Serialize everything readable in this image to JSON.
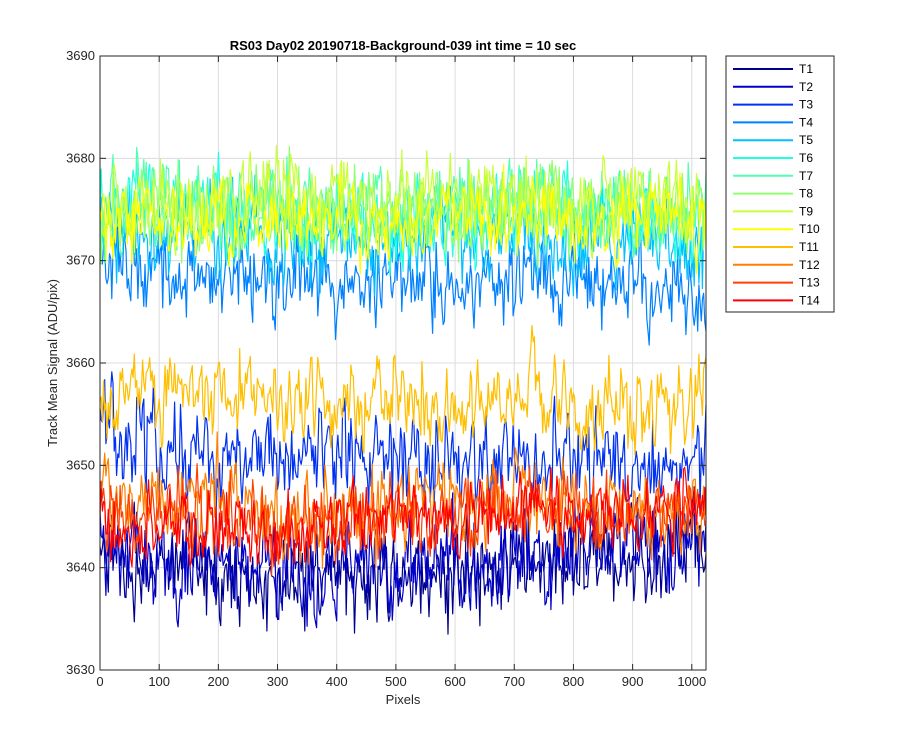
{
  "chart_data": {
    "type": "line",
    "title": "RS03 Day02 20190718-Background-039 int time = 10 sec",
    "xlabel": "Pixels",
    "ylabel": "Track Mean Signal (ADU/pix)",
    "xlim": [
      0,
      1024
    ],
    "ylim": [
      3630,
      3690
    ],
    "xticks": [
      0,
      100,
      200,
      300,
      400,
      500,
      600,
      700,
      800,
      900,
      1000
    ],
    "yticks": [
      3630,
      3640,
      3650,
      3660,
      3670,
      3680,
      3690
    ],
    "grid": true,
    "legend_position": "outside-right",
    "series": [
      {
        "name": "T1",
        "color": "#00008f",
        "x": [
          0,
          100,
          200,
          300,
          400,
          500,
          600,
          700,
          800,
          900,
          1024
        ],
        "values": [
          3641,
          3640,
          3640,
          3638,
          3639,
          3640,
          3639,
          3640,
          3641,
          3641,
          3642
        ],
        "noise": 2.2
      },
      {
        "name": "T2",
        "color": "#0000c8",
        "x": [
          0,
          100,
          200,
          300,
          400,
          500,
          600,
          700,
          800,
          900,
          1024
        ],
        "values": [
          3642,
          3641,
          3640,
          3639,
          3639,
          3640,
          3640,
          3641,
          3641,
          3642,
          3643
        ],
        "noise": 2.2
      },
      {
        "name": "T3",
        "color": "#0030f0",
        "x": [
          0,
          100,
          200,
          300,
          400,
          500,
          600,
          700,
          800,
          900,
          1024
        ],
        "values": [
          3654,
          3652,
          3651,
          3650,
          3651,
          3650,
          3650,
          3651,
          3650,
          3650,
          3651
        ],
        "noise": 2.2
      },
      {
        "name": "T4",
        "color": "#0080ff",
        "x": [
          0,
          100,
          200,
          300,
          400,
          500,
          600,
          700,
          800,
          900,
          1024
        ],
        "values": [
          3670,
          3669,
          3669,
          3668,
          3668,
          3668,
          3668,
          3669,
          3668,
          3668,
          3666
        ],
        "noise": 2.0
      },
      {
        "name": "T5",
        "color": "#00c0ff",
        "x": [
          0,
          100,
          200,
          300,
          400,
          500,
          600,
          700,
          800,
          900,
          1024
        ],
        "values": [
          3673,
          3673,
          3673,
          3672,
          3672,
          3672,
          3672,
          3672,
          3672,
          3672,
          3672
        ],
        "noise": 2.0
      },
      {
        "name": "T6",
        "color": "#20ffe0",
        "x": [
          0,
          100,
          200,
          300,
          400,
          500,
          600,
          700,
          800,
          900,
          1024
        ],
        "values": [
          3675,
          3675,
          3675,
          3674,
          3674,
          3674,
          3674,
          3675,
          3675,
          3674,
          3674
        ],
        "noise": 2.0
      },
      {
        "name": "T7",
        "color": "#50ffb0",
        "x": [
          0,
          100,
          200,
          300,
          400,
          500,
          600,
          700,
          800,
          900,
          1024
        ],
        "values": [
          3676,
          3676,
          3675,
          3675,
          3675,
          3675,
          3675,
          3676,
          3675,
          3675,
          3675
        ],
        "noise": 2.0
      },
      {
        "name": "T8",
        "color": "#90ff70",
        "x": [
          0,
          100,
          200,
          300,
          400,
          500,
          600,
          700,
          800,
          900,
          1024
        ],
        "values": [
          3675,
          3675,
          3675,
          3675,
          3675,
          3675,
          3675,
          3675,
          3675,
          3675,
          3675
        ],
        "noise": 2.0
      },
      {
        "name": "T9",
        "color": "#c8ff38",
        "x": [
          0,
          100,
          200,
          300,
          400,
          500,
          600,
          700,
          800,
          900,
          1024
        ],
        "values": [
          3675,
          3675,
          3676,
          3676,
          3676,
          3676,
          3676,
          3676,
          3676,
          3676,
          3676
        ],
        "noise": 2.0
      },
      {
        "name": "T10",
        "color": "#ffff00",
        "x": [
          0,
          100,
          200,
          300,
          400,
          500,
          600,
          700,
          800,
          900,
          1024
        ],
        "values": [
          3674,
          3674,
          3674,
          3674,
          3674,
          3674,
          3674,
          3674,
          3674,
          3674,
          3674
        ],
        "noise": 1.8
      },
      {
        "name": "T11",
        "color": "#ffbf00",
        "x": [
          0,
          100,
          200,
          300,
          400,
          500,
          600,
          700,
          800,
          900,
          1024
        ],
        "values": [
          3657,
          3657,
          3657,
          3656,
          3656,
          3656,
          3656,
          3657,
          3656,
          3655,
          3656
        ],
        "noise": 2.0
      },
      {
        "name": "T12",
        "color": "#ff8000",
        "x": [
          0,
          100,
          200,
          300,
          400,
          500,
          600,
          700,
          800,
          900,
          1024
        ],
        "values": [
          3647,
          3647,
          3647,
          3645,
          3645,
          3646,
          3646,
          3647,
          3646,
          3646,
          3646
        ],
        "noise": 2.0
      },
      {
        "name": "T13",
        "color": "#ff4000",
        "x": [
          0,
          100,
          200,
          300,
          400,
          500,
          600,
          700,
          800,
          900,
          1024
        ],
        "values": [
          3645,
          3645,
          3645,
          3644,
          3644,
          3645,
          3645,
          3646,
          3646,
          3645,
          3646
        ],
        "noise": 1.8
      },
      {
        "name": "T14",
        "color": "#ff0000",
        "x": [
          0,
          100,
          200,
          300,
          400,
          500,
          600,
          700,
          800,
          900,
          1024
        ],
        "values": [
          3644,
          3644,
          3644,
          3643,
          3644,
          3645,
          3645,
          3646,
          3646,
          3646,
          3647
        ],
        "noise": 1.6
      }
    ]
  }
}
